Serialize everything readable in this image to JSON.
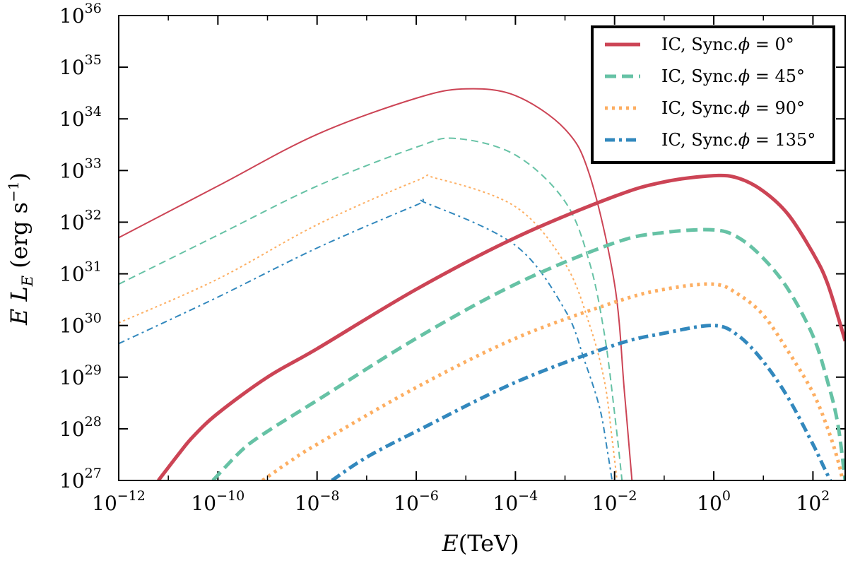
{
  "chart_data": {
    "type": "line",
    "title": "",
    "xlabel": {
      "var": "E",
      "unit": "(TeV)"
    },
    "ylabel": {
      "prefix": "E L",
      "sub": "E",
      "unit_open": " (erg s",
      "unit_exp": "−1",
      "unit_close": ")"
    },
    "xscale": "log",
    "yscale": "log",
    "xlim_log10": [
      -12,
      2.65
    ],
    "ylim_log10": [
      27,
      36
    ],
    "x_ticks": [
      {
        "log": -12,
        "base": "10",
        "exp": "−12"
      },
      {
        "log": -10,
        "base": "10",
        "exp": "−10"
      },
      {
        "log": -8,
        "base": "10",
        "exp": "−8"
      },
      {
        "log": -6,
        "base": "10",
        "exp": "−6"
      },
      {
        "log": -4,
        "base": "10",
        "exp": "−4"
      },
      {
        "log": -2,
        "base": "10",
        "exp": "−2"
      },
      {
        "log": 0,
        "base": "10",
        "exp": "0"
      },
      {
        "log": 2,
        "base": "10",
        "exp": "2"
      }
    ],
    "y_ticks": [
      {
        "log": 27,
        "base": "10",
        "exp": "27"
      },
      {
        "log": 28,
        "base": "10",
        "exp": "28"
      },
      {
        "log": 29,
        "base": "10",
        "exp": "29"
      },
      {
        "log": 30,
        "base": "10",
        "exp": "30"
      },
      {
        "log": 31,
        "base": "10",
        "exp": "31"
      },
      {
        "log": 32,
        "base": "10",
        "exp": "32"
      },
      {
        "log": 33,
        "base": "10",
        "exp": "33"
      },
      {
        "log": 34,
        "base": "10",
        "exp": "34"
      },
      {
        "log": 35,
        "base": "10",
        "exp": "35"
      },
      {
        "log": 36,
        "base": "10",
        "exp": "36"
      }
    ],
    "legend": {
      "position": "top-right",
      "entries": [
        {
          "prefix": "IC, Sync.",
          "phi": "ϕ",
          "rest": " = 0°",
          "color": "#cc4455",
          "dash": "solid"
        },
        {
          "prefix": "IC, Sync.",
          "phi": "ϕ",
          "rest": " = 45°",
          "color": "#66c2a5",
          "dash": "dashed"
        },
        {
          "prefix": "IC, Sync.",
          "phi": "ϕ",
          "rest": " = 90°",
          "color": "#fdae61",
          "dash": "dotted"
        },
        {
          "prefix": "IC, Sync.",
          "phi": "ϕ",
          "rest": " = 135°",
          "color": "#3288bd",
          "dash": "dashdot"
        }
      ]
    },
    "series": [
      {
        "name": "Sync. ϕ = 0°",
        "component": "synchrotron",
        "color": "#cc4455",
        "dash": "solid",
        "log_x": [
          -12,
          -10,
          -8,
          -6,
          -5,
          -4,
          -3,
          -2.5,
          -2,
          -1.8,
          -1.65
        ],
        "log_y": [
          31.7,
          32.7,
          33.7,
          34.4,
          34.58,
          34.45,
          33.8,
          32.9,
          30.8,
          28.7,
          27.0
        ]
      },
      {
        "name": "Sync. ϕ = 45°",
        "component": "synchrotron",
        "color": "#66c2a5",
        "dash": "dashed",
        "log_x": [
          -12,
          -10,
          -8,
          -6,
          -5.2,
          -4,
          -3,
          -2.5,
          -2.2,
          -2.0,
          -1.85
        ],
        "log_y": [
          30.8,
          31.75,
          32.7,
          33.45,
          33.62,
          33.3,
          32.4,
          31.2,
          29.8,
          28.3,
          27.0
        ]
      },
      {
        "name": "Sync. ϕ = 90°",
        "component": "synchrotron",
        "color": "#fdae61",
        "dash": "dotted",
        "log_x": [
          -12,
          -10,
          -8,
          -6,
          -5.6,
          -4,
          -3,
          -2.5,
          -2.2,
          -2.05,
          -1.95
        ],
        "log_y": [
          30.05,
          30.9,
          31.95,
          32.8,
          32.85,
          32.3,
          31.2,
          30.0,
          28.9,
          27.8,
          27.0
        ]
      },
      {
        "name": "Sync. ϕ = 135°",
        "component": "synchrotron",
        "color": "#3288bd",
        "dash": "dashdot",
        "log_x": [
          -12,
          -10,
          -8,
          -6,
          -5.8,
          -4,
          -3,
          -2.6,
          -2.3,
          -2.15,
          -2.05
        ],
        "log_y": [
          29.65,
          30.55,
          31.5,
          32.33,
          32.37,
          31.55,
          30.3,
          29.3,
          28.4,
          27.6,
          27.0
        ]
      },
      {
        "name": "IC ϕ = 0°",
        "component": "inverse-compton",
        "color": "#cc4455",
        "dash": "solid",
        "log_x": [
          -11.2,
          -10.8,
          -10.5,
          -10,
          -9,
          -8,
          -6,
          -4,
          -2,
          -1,
          0,
          0.5,
          1,
          1.5,
          2,
          2.3,
          2.65
        ],
        "log_y": [
          27.0,
          27.5,
          27.85,
          28.3,
          29.0,
          29.55,
          30.7,
          31.7,
          32.5,
          32.78,
          32.9,
          32.85,
          32.6,
          32.15,
          31.4,
          30.8,
          29.7
        ]
      },
      {
        "name": "IC ϕ = 45°",
        "component": "inverse-compton",
        "color": "#66c2a5",
        "dash": "dashed",
        "log_x": [
          -10.1,
          -9.5,
          -9,
          -8,
          -6,
          -4,
          -2,
          -1,
          0,
          0.5,
          1,
          1.5,
          2,
          2.3,
          2.5,
          2.65
        ],
        "log_y": [
          27.0,
          27.6,
          27.95,
          28.55,
          29.75,
          30.8,
          31.6,
          31.8,
          31.85,
          31.7,
          31.3,
          30.7,
          29.8,
          28.9,
          28.1,
          27.0
        ]
      },
      {
        "name": "IC ϕ = 90°",
        "component": "inverse-compton",
        "color": "#fdae61",
        "dash": "dotted",
        "log_x": [
          -9.1,
          -8.5,
          -8,
          -6,
          -4,
          -2,
          -1,
          0,
          0.5,
          1,
          1.5,
          2,
          2.3,
          2.5,
          2.6
        ],
        "log_y": [
          27.0,
          27.4,
          27.7,
          28.8,
          29.75,
          30.45,
          30.7,
          30.8,
          30.6,
          30.2,
          29.5,
          28.7,
          28.0,
          27.4,
          27.0
        ]
      },
      {
        "name": "IC ϕ = 135°",
        "component": "inverse-compton",
        "color": "#3288bd",
        "dash": "dashdot",
        "log_x": [
          -7.7,
          -7,
          -6,
          -4,
          -2,
          -1,
          0,
          0.5,
          1,
          1.5,
          2,
          2.2,
          2.35
        ],
        "log_y": [
          27.0,
          27.45,
          27.95,
          28.9,
          29.62,
          29.85,
          30.0,
          29.8,
          29.3,
          28.6,
          27.7,
          27.3,
          27.0
        ]
      }
    ]
  }
}
